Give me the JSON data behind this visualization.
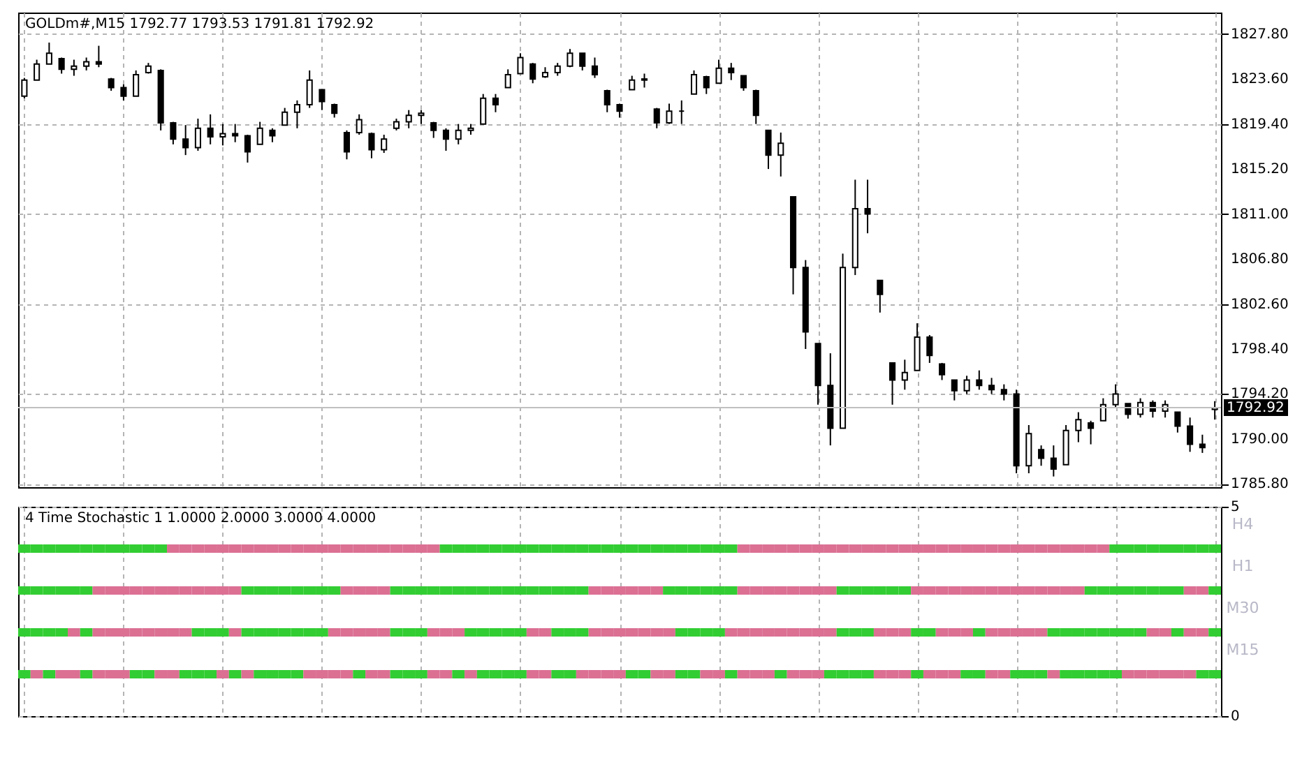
{
  "chart_data": [
    {
      "type": "candlestick",
      "title": "GOLDm#,M15  1792.77 1793.53 1791.81 1792.92",
      "categories": [
        null,
        null,
        null,
        null,
        null,
        null,
        null,
        null,
        null,
        null,
        null,
        null,
        null,
        null,
        null,
        null,
        null,
        null,
        null,
        null,
        null,
        null,
        null,
        null,
        null,
        null,
        null,
        null,
        null,
        null,
        null,
        null,
        null,
        null,
        null,
        null,
        null,
        null,
        null,
        null,
        null,
        null,
        null,
        null,
        null,
        null,
        null,
        null,
        null,
        null,
        null,
        null,
        null,
        null,
        null,
        null,
        null,
        null,
        null,
        null,
        null,
        null,
        null,
        null,
        null,
        null,
        null,
        null,
        null,
        null,
        null,
        null,
        null,
        null,
        null,
        null,
        null,
        null,
        null,
        null,
        null,
        null,
        null,
        null,
        null,
        null,
        null,
        null,
        null,
        null,
        null,
        null,
        null,
        null,
        null,
        null,
        null
      ],
      "ohlc": [
        [
          1822.0,
          1823.7,
          1821.8,
          1823.5
        ],
        [
          1823.5,
          1825.4,
          1823.5,
          1825.0
        ],
        [
          1825.0,
          1827.0,
          1825.0,
          1826.0
        ],
        [
          1825.5,
          1825.6,
          1824.1,
          1824.5
        ],
        [
          1824.5,
          1825.4,
          1823.9,
          1824.8
        ],
        [
          1824.8,
          1825.6,
          1824.4,
          1825.2
        ],
        [
          1825.2,
          1826.7,
          1824.7,
          1825.0
        ],
        [
          1823.6,
          1823.7,
          1822.5,
          1822.8
        ],
        [
          1822.8,
          1823.1,
          1821.6,
          1822.0
        ],
        [
          1822.0,
          1824.4,
          1822.0,
          1824.0
        ],
        [
          1824.2,
          1825.1,
          1824.1,
          1824.8
        ],
        [
          1824.4,
          1824.5,
          1818.8,
          1819.5
        ],
        [
          1819.5,
          1819.6,
          1817.5,
          1818.0
        ],
        [
          1818.0,
          1819.3,
          1816.5,
          1817.2
        ],
        [
          1817.2,
          1819.9,
          1816.9,
          1819.0
        ],
        [
          1819.0,
          1820.3,
          1817.5,
          1818.2
        ],
        [
          1818.2,
          1819.4,
          1817.4,
          1818.5
        ],
        [
          1818.5,
          1819.4,
          1817.7,
          1818.3
        ],
        [
          1818.3,
          1818.4,
          1815.8,
          1816.8
        ],
        [
          1817.5,
          1819.6,
          1817.5,
          1819.0
        ],
        [
          1818.8,
          1819.0,
          1817.7,
          1818.3
        ],
        [
          1819.3,
          1820.9,
          1819.3,
          1820.5
        ],
        [
          1820.5,
          1821.6,
          1819.0,
          1821.2
        ],
        [
          1821.2,
          1824.4,
          1820.9,
          1823.5
        ],
        [
          1822.6,
          1822.6,
          1820.7,
          1821.5
        ],
        [
          1821.2,
          1821.3,
          1820.0,
          1820.4
        ],
        [
          1818.6,
          1818.8,
          1816.1,
          1816.8
        ],
        [
          1818.6,
          1820.3,
          1818.4,
          1819.8
        ],
        [
          1818.5,
          1818.6,
          1816.2,
          1817.0
        ],
        [
          1817.0,
          1818.4,
          1816.7,
          1818.0
        ],
        [
          1819.0,
          1819.9,
          1818.8,
          1819.6
        ],
        [
          1819.6,
          1820.7,
          1819.0,
          1820.2
        ],
        [
          1820.2,
          1820.7,
          1819.4,
          1820.4
        ],
        [
          1819.5,
          1819.6,
          1818.1,
          1818.8
        ],
        [
          1818.8,
          1819.0,
          1816.9,
          1818.0
        ],
        [
          1818.0,
          1819.4,
          1817.5,
          1818.8
        ],
        [
          1818.8,
          1819.4,
          1818.4,
          1819.0
        ],
        [
          1819.4,
          1822.2,
          1819.4,
          1821.8
        ],
        [
          1821.8,
          1822.2,
          1820.5,
          1821.2
        ],
        [
          1822.8,
          1824.5,
          1822.8,
          1824.0
        ],
        [
          1824.1,
          1826.0,
          1824.1,
          1825.6
        ],
        [
          1825.0,
          1825.1,
          1823.2,
          1823.6
        ],
        [
          1823.8,
          1824.7,
          1823.7,
          1824.2
        ],
        [
          1824.2,
          1825.1,
          1823.9,
          1824.8
        ],
        [
          1824.8,
          1826.4,
          1824.7,
          1826.0
        ],
        [
          1826.0,
          1826.0,
          1824.4,
          1824.8
        ],
        [
          1824.8,
          1825.6,
          1823.7,
          1824.0
        ],
        [
          1822.5,
          1822.6,
          1820.5,
          1821.2
        ],
        [
          1821.2,
          1821.3,
          1820.0,
          1820.6
        ],
        [
          1822.6,
          1823.9,
          1822.6,
          1823.5
        ],
        [
          1823.5,
          1824.1,
          1822.8,
          1823.6
        ],
        [
          1820.8,
          1820.9,
          1819.0,
          1819.5
        ],
        [
          1819.5,
          1821.3,
          1819.4,
          1820.6
        ],
        [
          1820.6,
          1821.6,
          1819.4,
          1820.6
        ],
        [
          1822.2,
          1824.4,
          1822.2,
          1824.0
        ],
        [
          1823.8,
          1823.9,
          1822.2,
          1822.8
        ],
        [
          1823.2,
          1825.4,
          1823.2,
          1824.6
        ],
        [
          1824.6,
          1825.1,
          1823.5,
          1824.2
        ],
        [
          1823.9,
          1823.9,
          1822.5,
          1822.8
        ],
        [
          1822.5,
          1822.6,
          1819.4,
          1820.2
        ],
        [
          1818.8,
          1818.8,
          1815.2,
          1816.5
        ],
        [
          1816.5,
          1818.6,
          1814.5,
          1817.6
        ],
        [
          1812.6,
          1812.6,
          1803.5,
          1806.0
        ],
        [
          1806.0,
          1806.7,
          1798.4,
          1800.0
        ],
        [
          1798.9,
          1798.9,
          1793.2,
          1795.0
        ],
        [
          1795.0,
          1798.0,
          1789.4,
          1791.0
        ],
        [
          1791.0,
          1807.3,
          1791.0,
          1806.0
        ],
        [
          1806.0,
          1814.2,
          1805.3,
          1811.5
        ],
        [
          1811.5,
          1814.2,
          1809.2,
          1811.0
        ],
        [
          1804.8,
          1804.8,
          1801.8,
          1803.5
        ],
        [
          1797.1,
          1797.1,
          1793.2,
          1795.5
        ],
        [
          1795.5,
          1797.4,
          1794.6,
          1796.2
        ],
        [
          1796.4,
          1800.8,
          1796.4,
          1799.5
        ],
        [
          1799.5,
          1799.7,
          1797.1,
          1797.8
        ],
        [
          1797.0,
          1797.1,
          1795.5,
          1796.0
        ],
        [
          1795.5,
          1795.5,
          1793.6,
          1794.5
        ],
        [
          1794.5,
          1795.9,
          1794.2,
          1795.5
        ],
        [
          1795.5,
          1796.4,
          1794.6,
          1795.0
        ],
        [
          1795.0,
          1795.7,
          1794.2,
          1794.6
        ],
        [
          1794.6,
          1795.1,
          1793.6,
          1794.2
        ],
        [
          1794.2,
          1794.6,
          1786.8,
          1787.5
        ],
        [
          1787.5,
          1791.3,
          1786.8,
          1790.5
        ],
        [
          1789.0,
          1789.4,
          1787.5,
          1788.2
        ],
        [
          1788.2,
          1789.4,
          1786.5,
          1787.2
        ],
        [
          1787.6,
          1791.3,
          1787.6,
          1790.8
        ],
        [
          1790.8,
          1792.5,
          1789.7,
          1791.8
        ],
        [
          1791.5,
          1791.7,
          1789.5,
          1791.0
        ],
        [
          1791.7,
          1793.8,
          1791.7,
          1793.2
        ],
        [
          1793.2,
          1795.1,
          1792.9,
          1794.2
        ],
        [
          1793.3,
          1793.3,
          1791.9,
          1792.3
        ],
        [
          1792.3,
          1793.8,
          1792.0,
          1793.4
        ],
        [
          1793.4,
          1793.6,
          1792.0,
          1792.6
        ],
        [
          1792.6,
          1793.6,
          1792.0,
          1793.2
        ],
        [
          1792.5,
          1792.5,
          1790.6,
          1791.2
        ],
        [
          1791.2,
          1792.0,
          1788.8,
          1789.5
        ],
        [
          1789.5,
          1790.4,
          1788.7,
          1789.2
        ],
        [
          1792.77,
          1793.53,
          1791.81,
          1792.92
        ]
      ],
      "ylim": [
        1785.5,
        1829.8
      ],
      "yticks": [
        {
          "value": 1785.8,
          "label": "1785.80"
        },
        {
          "value": 1790.0,
          "label": "1790.00"
        },
        {
          "value": 1794.2,
          "label": "1794.20"
        },
        {
          "value": 1798.4,
          "label": "1798.40"
        },
        {
          "value": 1802.6,
          "label": "1802.60"
        },
        {
          "value": 1806.8,
          "label": "1806.80"
        },
        {
          "value": 1811.0,
          "label": "1811.00"
        },
        {
          "value": 1815.2,
          "label": "1815.20"
        },
        {
          "value": 1819.4,
          "label": "1819.40"
        },
        {
          "value": 1823.6,
          "label": "1823.60"
        },
        {
          "value": 1827.8,
          "label": "1827.80"
        }
      ],
      "ref_lines": [
        {
          "axis": "y",
          "value": 1792.92,
          "label": "1792.92",
          "color": "#c0c0c0"
        }
      ],
      "grid": true,
      "tick_labels": "y"
    },
    {
      "type": "scatter",
      "title": "4 Time Stochastic 1 1.0000 2.0000 3.0000 4.0000",
      "marker": "square",
      "categories": [
        null,
        null,
        null,
        null,
        null,
        null,
        null,
        null,
        null,
        null,
        null,
        null,
        null,
        null,
        null,
        null,
        null,
        null,
        null,
        null,
        null,
        null,
        null,
        null,
        null,
        null,
        null,
        null,
        null,
        null,
        null,
        null,
        null,
        null,
        null,
        null,
        null,
        null,
        null,
        null,
        null,
        null,
        null,
        null,
        null,
        null,
        null,
        null,
        null,
        null,
        null,
        null,
        null,
        null,
        null,
        null,
        null,
        null,
        null,
        null,
        null,
        null,
        null,
        null,
        null,
        null,
        null,
        null,
        null,
        null,
        null,
        null,
        null,
        null,
        null,
        null,
        null,
        null,
        null,
        null,
        null,
        null,
        null,
        null,
        null,
        null,
        null,
        null,
        null,
        null,
        null,
        null,
        null,
        null,
        null,
        null,
        null
      ],
      "series": [
        {
          "name": "H4",
          "values": [
            4,
            4,
            4,
            4,
            4,
            4,
            4,
            4,
            4,
            4,
            4,
            4,
            4,
            4,
            4,
            4,
            4,
            4,
            4,
            4,
            4,
            4,
            4,
            4,
            4,
            4,
            4,
            4,
            4,
            4,
            4,
            4,
            4,
            4,
            4,
            4,
            4,
            4,
            4,
            4,
            4,
            4,
            4,
            4,
            4,
            4,
            4,
            4,
            4,
            4,
            4,
            4,
            4,
            4,
            4,
            4,
            4,
            4,
            4,
            4,
            4,
            4,
            4,
            4,
            4,
            4,
            4,
            4,
            4,
            4,
            4,
            4,
            4,
            4,
            4,
            4,
            4,
            4,
            4,
            4,
            4,
            4,
            4,
            4,
            4,
            4,
            4,
            4,
            4,
            4,
            4,
            4,
            4,
            4,
            4,
            4,
            4
          ],
          "colors": [
            "#32cd32",
            "#32cd32",
            "#32cd32",
            "#32cd32",
            "#32cd32",
            "#32cd32",
            "#32cd32",
            "#32cd32",
            "#32cd32",
            "#32cd32",
            "#32cd32",
            "#32cd32",
            "#db7093",
            "#db7093",
            "#db7093",
            "#db7093",
            "#db7093",
            "#db7093",
            "#db7093",
            "#db7093",
            "#db7093",
            "#db7093",
            "#db7093",
            "#db7093",
            "#db7093",
            "#db7093",
            "#db7093",
            "#db7093",
            "#db7093",
            "#db7093",
            "#db7093",
            "#db7093",
            "#db7093",
            "#db7093",
            "#32cd32",
            "#32cd32",
            "#32cd32",
            "#32cd32",
            "#32cd32",
            "#32cd32",
            "#32cd32",
            "#32cd32",
            "#32cd32",
            "#32cd32",
            "#32cd32",
            "#32cd32",
            "#32cd32",
            "#32cd32",
            "#32cd32",
            "#32cd32",
            "#32cd32",
            "#32cd32",
            "#32cd32",
            "#32cd32",
            "#32cd32",
            "#32cd32",
            "#32cd32",
            "#32cd32",
            "#db7093",
            "#db7093",
            "#db7093",
            "#db7093",
            "#db7093",
            "#db7093",
            "#db7093",
            "#db7093",
            "#db7093",
            "#db7093",
            "#db7093",
            "#db7093",
            "#db7093",
            "#db7093",
            "#db7093",
            "#db7093",
            "#db7093",
            "#db7093",
            "#db7093",
            "#db7093",
            "#db7093",
            "#db7093",
            "#db7093",
            "#db7093",
            "#db7093",
            "#db7093",
            "#db7093",
            "#db7093",
            "#db7093",
            "#db7093",
            "#32cd32",
            "#32cd32",
            "#32cd32",
            "#32cd32",
            "#32cd32",
            "#32cd32",
            "#32cd32",
            "#32cd32",
            "#32cd32"
          ]
        },
        {
          "name": "H1",
          "values": [
            3,
            3,
            3,
            3,
            3,
            3,
            3,
            3,
            3,
            3,
            3,
            3,
            3,
            3,
            3,
            3,
            3,
            3,
            3,
            3,
            3,
            3,
            3,
            3,
            3,
            3,
            3,
            3,
            3,
            3,
            3,
            3,
            3,
            3,
            3,
            3,
            3,
            3,
            3,
            3,
            3,
            3,
            3,
            3,
            3,
            3,
            3,
            3,
            3,
            3,
            3,
            3,
            3,
            3,
            3,
            3,
            3,
            3,
            3,
            3,
            3,
            3,
            3,
            3,
            3,
            3,
            3,
            3,
            3,
            3,
            3,
            3,
            3,
            3,
            3,
            3,
            3,
            3,
            3,
            3,
            3,
            3,
            3,
            3,
            3,
            3,
            3,
            3,
            3,
            3,
            3,
            3,
            3,
            3,
            3,
            3,
            3
          ],
          "colors": [
            "#32cd32",
            "#32cd32",
            "#32cd32",
            "#32cd32",
            "#32cd32",
            "#32cd32",
            "#db7093",
            "#db7093",
            "#db7093",
            "#db7093",
            "#db7093",
            "#db7093",
            "#db7093",
            "#db7093",
            "#db7093",
            "#db7093",
            "#db7093",
            "#db7093",
            "#32cd32",
            "#32cd32",
            "#32cd32",
            "#32cd32",
            "#32cd32",
            "#32cd32",
            "#32cd32",
            "#32cd32",
            "#db7093",
            "#db7093",
            "#db7093",
            "#db7093",
            "#32cd32",
            "#32cd32",
            "#32cd32",
            "#32cd32",
            "#32cd32",
            "#32cd32",
            "#32cd32",
            "#32cd32",
            "#32cd32",
            "#32cd32",
            "#32cd32",
            "#32cd32",
            "#32cd32",
            "#32cd32",
            "#32cd32",
            "#32cd32",
            "#db7093",
            "#db7093",
            "#db7093",
            "#db7093",
            "#db7093",
            "#db7093",
            "#32cd32",
            "#32cd32",
            "#32cd32",
            "#32cd32",
            "#32cd32",
            "#32cd32",
            "#db7093",
            "#db7093",
            "#db7093",
            "#db7093",
            "#db7093",
            "#db7093",
            "#db7093",
            "#db7093",
            "#32cd32",
            "#32cd32",
            "#32cd32",
            "#32cd32",
            "#32cd32",
            "#32cd32",
            "#db7093",
            "#db7093",
            "#db7093",
            "#db7093",
            "#db7093",
            "#db7093",
            "#db7093",
            "#db7093",
            "#db7093",
            "#db7093",
            "#db7093",
            "#db7093",
            "#db7093",
            "#db7093",
            "#32cd32",
            "#32cd32",
            "#32cd32",
            "#32cd32",
            "#32cd32",
            "#32cd32",
            "#32cd32",
            "#32cd32",
            "#db7093",
            "#db7093",
            "#32cd32"
          ]
        },
        {
          "name": "M30",
          "values": [
            2,
            2,
            2,
            2,
            2,
            2,
            2,
            2,
            2,
            2,
            2,
            2,
            2,
            2,
            2,
            2,
            2,
            2,
            2,
            2,
            2,
            2,
            2,
            2,
            2,
            2,
            2,
            2,
            2,
            2,
            2,
            2,
            2,
            2,
            2,
            2,
            2,
            2,
            2,
            2,
            2,
            2,
            2,
            2,
            2,
            2,
            2,
            2,
            2,
            2,
            2,
            2,
            2,
            2,
            2,
            2,
            2,
            2,
            2,
            2,
            2,
            2,
            2,
            2,
            2,
            2,
            2,
            2,
            2,
            2,
            2,
            2,
            2,
            2,
            2,
            2,
            2,
            2,
            2,
            2,
            2,
            2,
            2,
            2,
            2,
            2,
            2,
            2,
            2,
            2,
            2,
            2,
            2,
            2,
            2,
            2,
            2
          ],
          "colors": [
            "#32cd32",
            "#32cd32",
            "#32cd32",
            "#32cd32",
            "#db7093",
            "#32cd32",
            "#db7093",
            "#db7093",
            "#db7093",
            "#db7093",
            "#db7093",
            "#db7093",
            "#db7093",
            "#db7093",
            "#32cd32",
            "#32cd32",
            "#32cd32",
            "#db7093",
            "#32cd32",
            "#32cd32",
            "#32cd32",
            "#32cd32",
            "#32cd32",
            "#32cd32",
            "#32cd32",
            "#db7093",
            "#db7093",
            "#db7093",
            "#db7093",
            "#db7093",
            "#32cd32",
            "#32cd32",
            "#32cd32",
            "#db7093",
            "#db7093",
            "#db7093",
            "#32cd32",
            "#32cd32",
            "#32cd32",
            "#32cd32",
            "#32cd32",
            "#db7093",
            "#db7093",
            "#32cd32",
            "#32cd32",
            "#32cd32",
            "#db7093",
            "#db7093",
            "#db7093",
            "#db7093",
            "#db7093",
            "#db7093",
            "#db7093",
            "#32cd32",
            "#32cd32",
            "#32cd32",
            "#32cd32",
            "#db7093",
            "#db7093",
            "#db7093",
            "#db7093",
            "#db7093",
            "#db7093",
            "#db7093",
            "#db7093",
            "#db7093",
            "#32cd32",
            "#32cd32",
            "#32cd32",
            "#db7093",
            "#db7093",
            "#db7093",
            "#32cd32",
            "#32cd32",
            "#db7093",
            "#db7093",
            "#db7093",
            "#32cd32",
            "#db7093",
            "#db7093",
            "#db7093",
            "#db7093",
            "#db7093",
            "#32cd32",
            "#32cd32",
            "#32cd32",
            "#32cd32",
            "#32cd32",
            "#32cd32",
            "#32cd32",
            "#32cd32",
            "#db7093",
            "#db7093",
            "#32cd32",
            "#db7093",
            "#db7093",
            "#32cd32"
          ]
        },
        {
          "name": "M15",
          "values": [
            1,
            1,
            1,
            1,
            1,
            1,
            1,
            1,
            1,
            1,
            1,
            1,
            1,
            1,
            1,
            1,
            1,
            1,
            1,
            1,
            1,
            1,
            1,
            1,
            1,
            1,
            1,
            1,
            1,
            1,
            1,
            1,
            1,
            1,
            1,
            1,
            1,
            1,
            1,
            1,
            1,
            1,
            1,
            1,
            1,
            1,
            1,
            1,
            1,
            1,
            1,
            1,
            1,
            1,
            1,
            1,
            1,
            1,
            1,
            1,
            1,
            1,
            1,
            1,
            1,
            1,
            1,
            1,
            1,
            1,
            1,
            1,
            1,
            1,
            1,
            1,
            1,
            1,
            1,
            1,
            1,
            1,
            1,
            1,
            1,
            1,
            1,
            1,
            1,
            1,
            1,
            1,
            1,
            1,
            1,
            1,
            1
          ],
          "colors": [
            "#32cd32",
            "#db7093",
            "#32cd32",
            "#db7093",
            "#db7093",
            "#32cd32",
            "#db7093",
            "#db7093",
            "#db7093",
            "#32cd32",
            "#32cd32",
            "#db7093",
            "#db7093",
            "#32cd32",
            "#32cd32",
            "#32cd32",
            "#db7093",
            "#32cd32",
            "#db7093",
            "#32cd32",
            "#32cd32",
            "#32cd32",
            "#32cd32",
            "#db7093",
            "#db7093",
            "#db7093",
            "#db7093",
            "#32cd32",
            "#db7093",
            "#db7093",
            "#32cd32",
            "#32cd32",
            "#32cd32",
            "#db7093",
            "#db7093",
            "#32cd32",
            "#db7093",
            "#32cd32",
            "#32cd32",
            "#32cd32",
            "#32cd32",
            "#db7093",
            "#db7093",
            "#32cd32",
            "#32cd32",
            "#db7093",
            "#db7093",
            "#db7093",
            "#db7093",
            "#32cd32",
            "#32cd32",
            "#db7093",
            "#db7093",
            "#32cd32",
            "#32cd32",
            "#db7093",
            "#db7093",
            "#32cd32",
            "#db7093",
            "#db7093",
            "#db7093",
            "#32cd32",
            "#db7093",
            "#db7093",
            "#db7093",
            "#32cd32",
            "#32cd32",
            "#32cd32",
            "#32cd32",
            "#db7093",
            "#db7093",
            "#db7093",
            "#32cd32",
            "#db7093",
            "#db7093",
            "#db7093",
            "#32cd32",
            "#32cd32",
            "#db7093",
            "#db7093",
            "#32cd32",
            "#32cd32",
            "#32cd32",
            "#db7093",
            "#32cd32",
            "#32cd32",
            "#32cd32",
            "#32cd32",
            "#32cd32",
            "#db7093",
            "#db7093",
            "#db7093",
            "#db7093",
            "#db7093",
            "#db7093",
            "#32cd32",
            "#32cd32"
          ]
        }
      ],
      "ylim": [
        0,
        5
      ],
      "yticks": [
        0,
        5
      ],
      "grid": true,
      "tick_labels": "y"
    }
  ]
}
